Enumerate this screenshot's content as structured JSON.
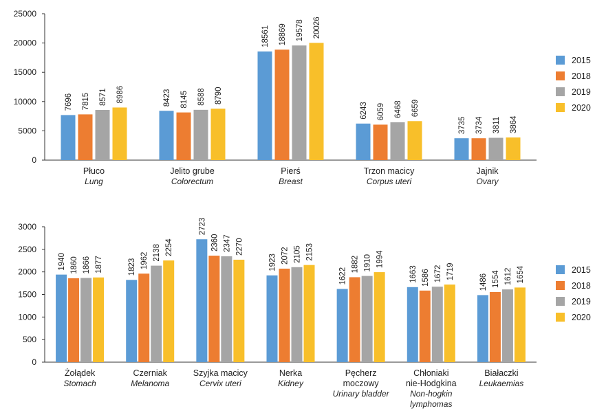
{
  "series_colors": [
    "#5b9bd5",
    "#ed7d31",
    "#a5a5a5",
    "#f8bf2a"
  ],
  "chart_data": [
    {
      "type": "bar",
      "title": "",
      "xlabel": "",
      "ylabel": "",
      "ylim": [
        0,
        25000
      ],
      "yticks": [
        0,
        5000,
        10000,
        15000,
        20000,
        25000
      ],
      "grid": false,
      "legend_position": "right",
      "categories": [
        {
          "pl": "Płuco",
          "en": [
            "Lung"
          ]
        },
        {
          "pl": "Jelito grube",
          "en": [
            "Colorectum"
          ]
        },
        {
          "pl": "Pierś",
          "en": [
            "Breast"
          ]
        },
        {
          "pl": "Trzon macicy",
          "en": [
            "Corpus uteri"
          ]
        },
        {
          "pl": "Jajnik",
          "en": [
            "Ovary"
          ]
        }
      ],
      "series": [
        {
          "name": "2015",
          "values": [
            7696,
            8423,
            18561,
            6243,
            3735
          ]
        },
        {
          "name": "2018",
          "values": [
            7815,
            8145,
            18869,
            6059,
            3734
          ]
        },
        {
          "name": "2019",
          "values": [
            8571,
            8588,
            19578,
            6468,
            3811
          ]
        },
        {
          "name": "2020",
          "values": [
            8986,
            8790,
            20026,
            6659,
            3864
          ]
        }
      ]
    },
    {
      "type": "bar",
      "title": "",
      "xlabel": "",
      "ylabel": "",
      "ylim": [
        0,
        3000
      ],
      "yticks": [
        0,
        500,
        1000,
        1500,
        2000,
        2500,
        3000
      ],
      "grid": false,
      "legend_position": "right",
      "categories": [
        {
          "pl": "Żołądek",
          "en": [
            "Stomach"
          ]
        },
        {
          "pl": "Czerniak",
          "en": [
            "Melanoma"
          ]
        },
        {
          "pl": "Szyjka macicy",
          "en": [
            "Cervix uteri"
          ]
        },
        {
          "pl": "Nerka",
          "en": [
            "Kidney"
          ]
        },
        {
          "pl": "Pęcherz\nmoczowy",
          "en": [
            "Urinary bladder"
          ]
        },
        {
          "pl": "Chłoniaki\nnie-Hodgkina",
          "en": [
            "Non-hogkin",
            "lymphomas"
          ]
        },
        {
          "pl": "Białaczki",
          "en": [
            "Leukaemias"
          ]
        }
      ],
      "series": [
        {
          "name": "2015",
          "values": [
            1940,
            1823,
            2723,
            1923,
            1622,
            1663,
            1486
          ]
        },
        {
          "name": "2018",
          "values": [
            1860,
            1962,
            2360,
            2072,
            1882,
            1586,
            1554
          ]
        },
        {
          "name": "2019",
          "values": [
            1866,
            2138,
            2347,
            2105,
            1910,
            1672,
            1612
          ]
        },
        {
          "name": "2020",
          "values": [
            1877,
            2254,
            2270,
            2153,
            1994,
            1719,
            1654
          ]
        }
      ]
    }
  ]
}
